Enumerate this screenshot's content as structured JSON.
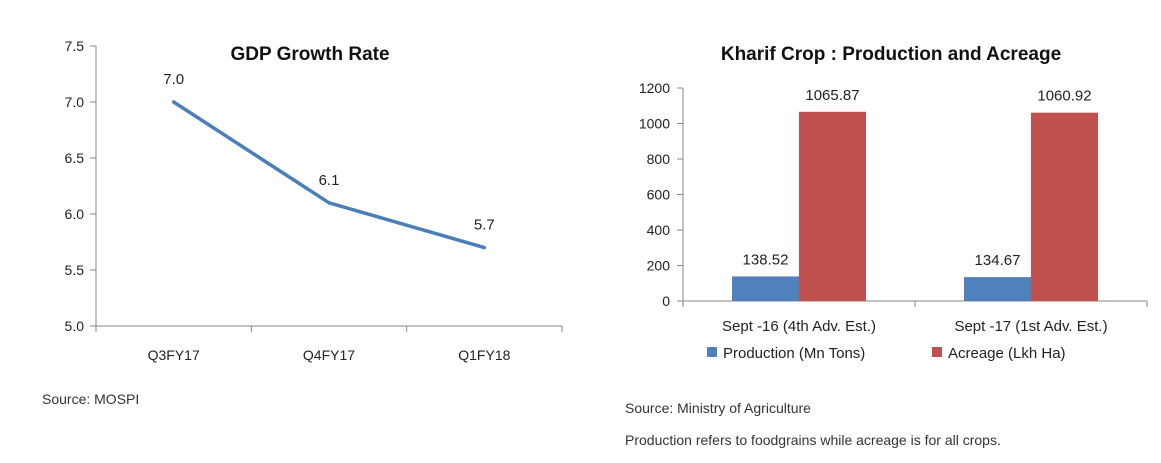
{
  "chart_data": [
    {
      "type": "line",
      "title": "GDP Growth Rate",
      "categories": [
        "Q3FY17",
        "Q4FY17",
        "Q1FY18"
      ],
      "values": [
        7.0,
        6.1,
        5.7
      ],
      "data_labels": [
        "7.0",
        "6.1",
        "5.7"
      ],
      "ylim": [
        5.0,
        7.5
      ],
      "yticks": [
        "5.0",
        "5.5",
        "6.0",
        "6.5",
        "7.0",
        "7.5"
      ],
      "xlabel": "",
      "ylabel": "",
      "grid": false,
      "color": "#4a7ebb"
    },
    {
      "type": "bar",
      "title": "Kharif Crop : Production and Acreage",
      "categories": [
        "Sept -16 (4th Adv. Est.)",
        "Sept -17 (1st Adv. Est.)"
      ],
      "series": [
        {
          "name": "Production (Mn Tons)",
          "values": [
            138.52,
            134.67
          ],
          "labels": [
            "138.52",
            "134.67"
          ],
          "color": "#4f81bd"
        },
        {
          "name": "Acreage (Lkh Ha)",
          "values": [
            1065.87,
            1060.92
          ],
          "labels": [
            "1065.87",
            "1060.92"
          ],
          "color": "#c0504d"
        }
      ],
      "ylim": [
        0,
        1200
      ],
      "yticks": [
        "0",
        "200",
        "400",
        "600",
        "800",
        "1000",
        "1200"
      ],
      "legend": "bottom",
      "grid": false
    }
  ],
  "notes": {
    "source_left": "Source: MOSPI",
    "source_right": "Source: Ministry of Agriculture",
    "footnote": "Production refers to foodgrains while acreage is for all crops."
  }
}
